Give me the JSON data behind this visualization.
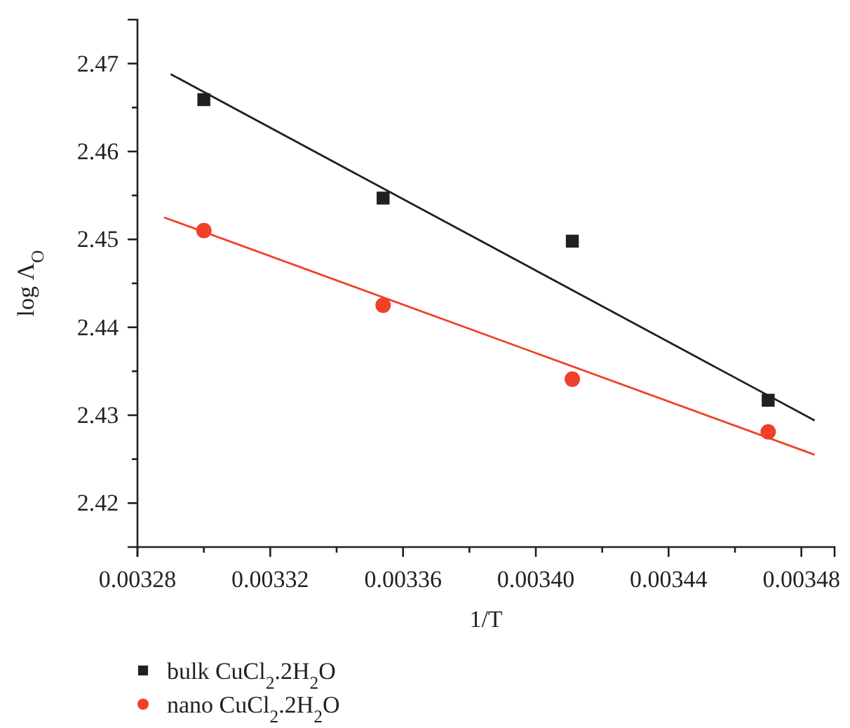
{
  "chart_data": {
    "type": "scatter",
    "xlabel": "1/T",
    "ylabel": "log Λ$_{O}$",
    "xlim": [
      0.00328,
      0.00349
    ],
    "ylim": [
      2.415,
      2.475
    ],
    "xticks": [
      {
        "value": 0.00328,
        "label": "0.00328"
      },
      {
        "value": 0.0033,
        "label": null
      },
      {
        "value": 0.00332,
        "label": "0.00332"
      },
      {
        "value": 0.00334,
        "label": null
      },
      {
        "value": 0.00336,
        "label": "0.00336"
      },
      {
        "value": 0.00338,
        "label": null
      },
      {
        "value": 0.0034,
        "label": "0.00340"
      },
      {
        "value": 0.00342,
        "label": null
      },
      {
        "value": 0.00344,
        "label": "0.00344"
      },
      {
        "value": 0.00346,
        "label": null
      },
      {
        "value": 0.00348,
        "label": "0.00348"
      }
    ],
    "yticks": [
      {
        "value": 2.42,
        "label": "2.42"
      },
      {
        "value": 2.425,
        "label": null
      },
      {
        "value": 2.43,
        "label": "2.43"
      },
      {
        "value": 2.435,
        "label": null
      },
      {
        "value": 2.44,
        "label": "2.44"
      },
      {
        "value": 2.445,
        "label": null
      },
      {
        "value": 2.45,
        "label": "2.45"
      },
      {
        "value": 2.455,
        "label": null
      },
      {
        "value": 2.46,
        "label": "2.46"
      },
      {
        "value": 2.465,
        "label": null
      },
      {
        "value": 2.47,
        "label": "2.47"
      }
    ],
    "grid": false,
    "legend": "bottom",
    "series": [
      {
        "name": "bulk CuCl$_{2}$.2H$_{2}$O",
        "marker": "square",
        "color": "#231f20",
        "x": [
          0.0033,
          0.003354,
          0.003411,
          0.00347
        ],
        "values": [
          2.4659,
          2.4547,
          2.4498,
          2.4317
        ]
      },
      {
        "name": "nano CuCl$_{2}$.2H$_{2}$O",
        "marker": "circle",
        "color": "#ee4128",
        "x": [
          0.0033,
          0.003354,
          0.003411,
          0.00347
        ],
        "values": [
          2.451,
          2.4425,
          2.4341,
          2.4281
        ]
      },
      {
        "type": "line",
        "color": "#231f20",
        "x": [
          0.00329,
          0.003484
        ],
        "values": [
          2.4688,
          2.4294
        ]
      },
      {
        "type": "line",
        "color": "#ee4128",
        "x": [
          0.003288,
          0.003484
        ],
        "values": [
          2.4525,
          2.4255
        ]
      }
    ]
  }
}
